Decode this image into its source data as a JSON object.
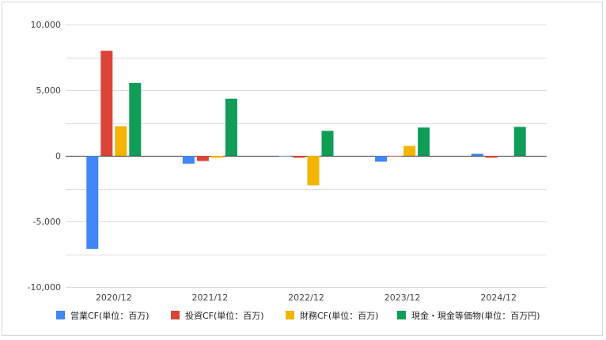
{
  "chart_data": {
    "type": "bar",
    "categories": [
      "2020/12",
      "2021/12",
      "2022/12",
      "2023/12",
      "2024/12"
    ],
    "series": [
      {
        "name": "営業CF(単位：百万)",
        "color": "#4285f4",
        "values": [
          -7100,
          -600,
          -30,
          -450,
          150
        ]
      },
      {
        "name": "投資CF(単位：百万)",
        "color": "#db4437",
        "values": [
          8000,
          -400,
          -150,
          -60,
          -150
        ]
      },
      {
        "name": "財務CF(単位：百万)",
        "color": "#f4b400",
        "values": [
          2250,
          -150,
          -2250,
          750,
          0
        ]
      },
      {
        "name": "現金・現金等価物(単位：百万円)",
        "color": "#0f9d58",
        "values": [
          5550,
          4350,
          1900,
          2150,
          2200
        ]
      }
    ],
    "y_ticks": [
      "10,000",
      "5,000",
      "0",
      "-5,000",
      "-10,000"
    ],
    "ylim": [
      -10000,
      10000
    ],
    "minor_gridlines": true,
    "legend": "bottom"
  }
}
